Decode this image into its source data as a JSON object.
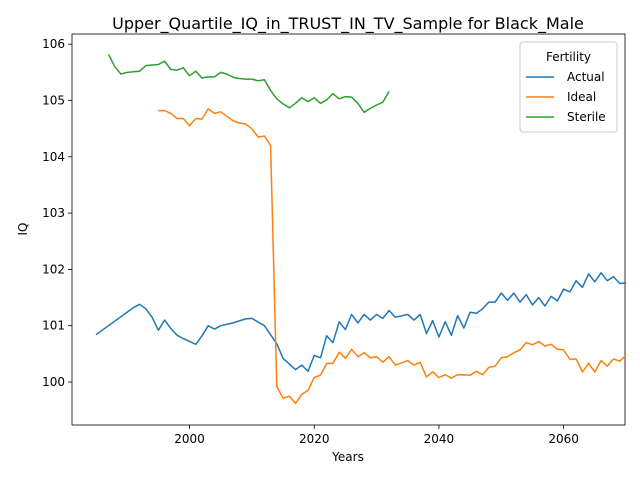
{
  "chart_data": {
    "type": "line",
    "title": "Upper_Quartile_IQ_in_TRUST_IN_TV_Sample for Black_Male",
    "xlabel": "Years",
    "ylabel": "IQ",
    "xlim": [
      2065,
      2075
    ],
    "ylim": [
      99.35,
      106.25
    ],
    "x_ticks": [
      2000,
      2020,
      2040,
      2060
    ],
    "y_ticks": [
      100,
      101,
      102,
      103,
      104,
      105,
      106
    ],
    "grid": false,
    "legend": {
      "title": "Fertility",
      "position": "top-right"
    },
    "series": [
      {
        "name": "Actual",
        "color": "#1f77b4",
        "x": [
          1985,
          1987,
          1989,
          1991,
          1992,
          1993,
          1994,
          1995,
          1996,
          1997,
          1998,
          1999,
          2001,
          2002,
          2003,
          2004,
          2005,
          2007,
          2009,
          2010,
          2012,
          2014,
          2015,
          2017,
          2018,
          2019,
          2020,
          2021,
          2022,
          2023,
          2024,
          2025,
          2026,
          2027,
          2028,
          2029,
          2030,
          2031,
          2032,
          2033,
          2035,
          2036,
          2037,
          2038,
          2039,
          2040,
          2041,
          2042,
          2043,
          2044,
          2045,
          2046,
          2047,
          2048,
          2049,
          2050,
          2051,
          2052,
          2053,
          2054,
          2055,
          2056,
          2057,
          2058,
          2059,
          2060,
          2061,
          2062,
          2063,
          2064,
          2065,
          2066,
          2067,
          2068,
          2069,
          2070
        ],
        "y": [
          100.84,
          101.0,
          101.16,
          101.32,
          101.38,
          101.3,
          101.15,
          100.92,
          101.1,
          100.95,
          100.83,
          100.77,
          100.67,
          100.82,
          101.0,
          100.94,
          101.0,
          101.05,
          101.12,
          101.13,
          101.0,
          100.68,
          100.42,
          100.22,
          100.3,
          100.19,
          100.47,
          100.43,
          100.82,
          100.7,
          101.07,
          100.93,
          101.2,
          101.05,
          101.2,
          101.1,
          101.2,
          101.13,
          101.27,
          101.15,
          101.2,
          101.1,
          101.2,
          100.86,
          101.09,
          100.8,
          101.07,
          100.83,
          101.18,
          100.96,
          101.24,
          101.22,
          101.3,
          101.42,
          101.42,
          101.58,
          101.45,
          101.58,
          101.42,
          101.55,
          101.37,
          101.5,
          101.35,
          101.52,
          101.44,
          101.65,
          101.6,
          101.8,
          101.68,
          101.92,
          101.78,
          101.94,
          101.8,
          101.87,
          101.75,
          101.76
        ]
      },
      {
        "name": "Ideal",
        "color": "#ff7f0e",
        "x": [
          1995,
          1996,
          1997,
          1998,
          1999,
          2000,
          2001,
          2002,
          2003,
          2004,
          2005,
          2006,
          2007,
          2008,
          2009,
          2010,
          2011,
          2012,
          2013,
          2014,
          2015,
          2016,
          2017,
          2018,
          2019,
          2020,
          2021,
          2022,
          2023,
          2024,
          2025,
          2026,
          2027,
          2028,
          2029,
          2030,
          2031,
          2032,
          2033,
          2034,
          2035,
          2036,
          2037,
          2038,
          2039,
          2040,
          2041,
          2042,
          2043,
          2044,
          2045,
          2046,
          2047,
          2048,
          2049,
          2050,
          2051,
          2052,
          2053,
          2054,
          2055,
          2056,
          2057,
          2058,
          2059,
          2060,
          2061,
          2062,
          2063,
          2064,
          2065,
          2066,
          2067,
          2068,
          2069,
          2070
        ],
        "y": [
          104.82,
          104.82,
          104.77,
          104.68,
          104.68,
          104.55,
          104.68,
          104.67,
          104.85,
          104.77,
          104.8,
          104.72,
          104.64,
          104.6,
          104.58,
          104.5,
          104.35,
          104.37,
          104.2,
          99.92,
          99.71,
          99.75,
          99.62,
          99.78,
          99.85,
          100.08,
          100.12,
          100.33,
          100.33,
          100.53,
          100.42,
          100.58,
          100.45,
          100.52,
          100.43,
          100.45,
          100.35,
          100.45,
          100.3,
          100.34,
          100.38,
          100.3,
          100.35,
          100.09,
          100.18,
          100.08,
          100.13,
          100.07,
          100.13,
          100.13,
          100.12,
          100.19,
          100.13,
          100.26,
          100.28,
          100.43,
          100.45,
          100.52,
          100.57,
          100.7,
          100.66,
          100.72,
          100.64,
          100.67,
          100.58,
          100.57,
          100.4,
          100.41,
          100.18,
          100.33,
          100.18,
          100.38,
          100.28,
          100.41,
          100.37,
          100.48
        ]
      },
      {
        "name": "Sterile",
        "color": "#2ca02c",
        "x": [
          1987,
          1988,
          1989,
          1990,
          1991,
          1992,
          1993,
          1994,
          1995,
          1996,
          1997,
          1998,
          1999,
          2000,
          2001,
          2002,
          2003,
          2004,
          2005,
          2006,
          2007,
          2008,
          2009,
          2010,
          2011,
          2012,
          2013,
          2014,
          2015,
          2016,
          2017,
          2018,
          2019,
          2020,
          2021,
          2022,
          2023,
          2024,
          2025,
          2026,
          2027,
          2028,
          2029,
          2030,
          2031,
          2032
        ],
        "y": [
          105.82,
          105.6,
          105.47,
          105.5,
          105.51,
          105.52,
          105.62,
          105.63,
          105.64,
          105.7,
          105.55,
          105.54,
          105.58,
          105.44,
          105.52,
          105.4,
          105.42,
          105.42,
          105.5,
          105.47,
          105.41,
          105.39,
          105.38,
          105.38,
          105.35,
          105.37,
          105.18,
          105.03,
          104.94,
          104.87,
          104.95,
          105.05,
          104.98,
          105.05,
          104.95,
          105.01,
          105.12,
          105.03,
          105.07,
          105.06,
          104.95,
          104.79,
          104.86,
          104.92,
          104.97,
          105.16
        ]
      }
    ]
  }
}
